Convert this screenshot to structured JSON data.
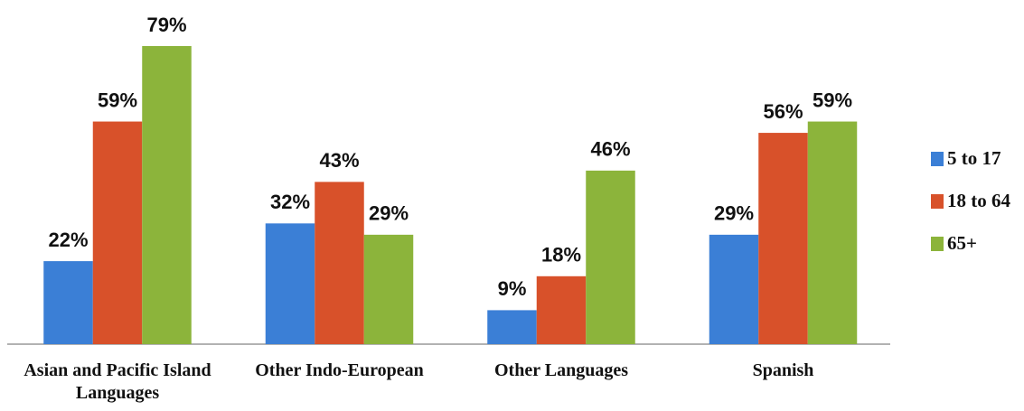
{
  "chart_data": {
    "type": "bar",
    "categories": [
      "Asian and Pacific Island Languages",
      "Other Indo-European",
      "Other Languages",
      "Spanish"
    ],
    "series": [
      {
        "name": "5 to 17",
        "color": "#3b7fd6",
        "values": [
          22,
          32,
          9,
          29
        ],
        "value_labels": [
          "22%",
          "32%",
          "9%",
          "29%"
        ]
      },
      {
        "name": "18 to 64",
        "color": "#d8512a",
        "values": [
          59,
          43,
          18,
          56
        ],
        "value_labels": [
          "59%",
          "43%",
          "18%",
          "56%"
        ]
      },
      {
        "name": "65+",
        "color": "#8cb43b",
        "values": [
          79,
          29,
          46,
          59
        ],
        "value_labels": [
          "79%",
          "29%",
          "46%",
          "59%"
        ]
      }
    ],
    "legend": "right"
  }
}
